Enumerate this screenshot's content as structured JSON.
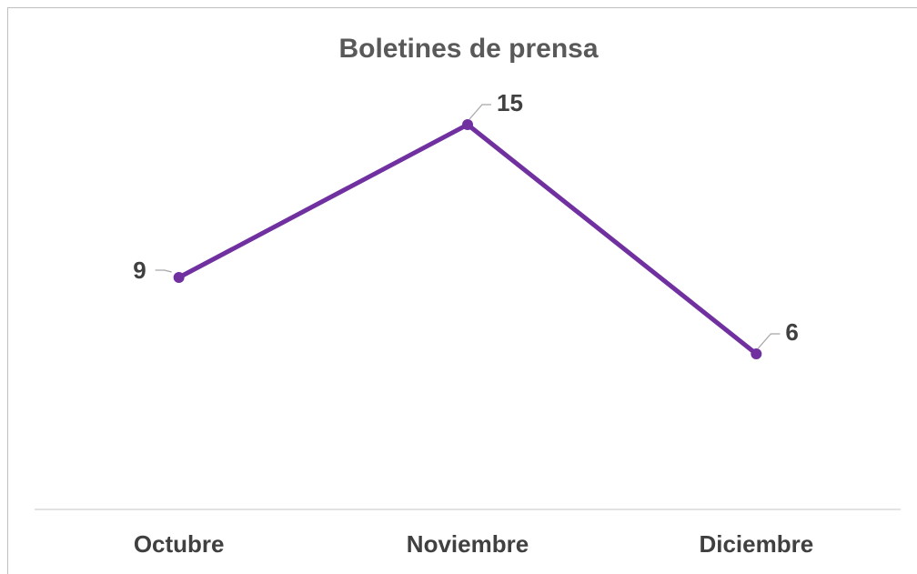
{
  "chart_data": {
    "type": "line",
    "title": "Boletines de prensa",
    "categories": [
      "Octubre",
      "Noviembre",
      "Diciembre"
    ],
    "series": [
      {
        "color": "#7030a0",
        "values": [
          9,
          15,
          6
        ]
      }
    ]
  }
}
